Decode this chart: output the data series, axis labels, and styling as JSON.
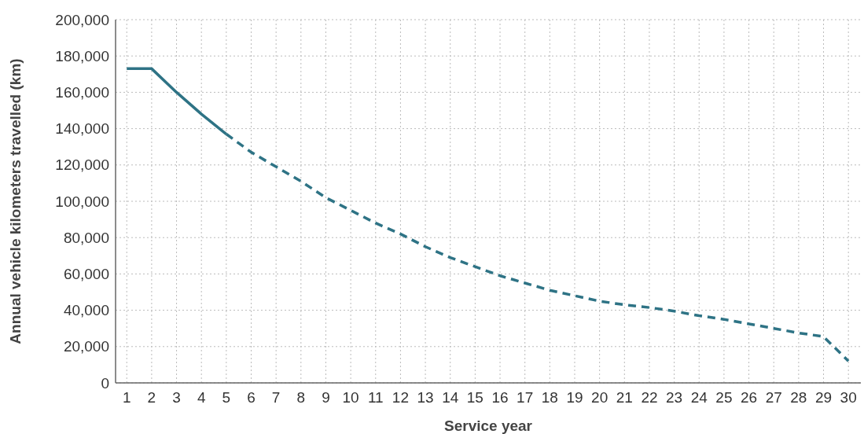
{
  "chart_data": {
    "type": "line",
    "xlabel": "Service year",
    "ylabel": "Annual vehicle kilometers travelled (km)",
    "series": [
      {
        "color": "#2e7385",
        "line_style": "solid",
        "x": [
          1,
          2,
          3,
          4,
          5
        ],
        "values": [
          173000,
          173000,
          160000,
          148000,
          137000
        ]
      },
      {
        "color": "#2e7385",
        "line_style": "dashed",
        "x": [
          5,
          6,
          7,
          8,
          9,
          10,
          11,
          12,
          13,
          14,
          15,
          16,
          17,
          18,
          19,
          20,
          21,
          22,
          23,
          24,
          25,
          26,
          27,
          28,
          29,
          30
        ],
        "values": [
          137000,
          127000,
          119000,
          111000,
          102000,
          95000,
          88000,
          82000,
          75000,
          69000,
          64000,
          59000,
          55000,
          51000,
          48000,
          45000,
          43000,
          41500,
          39500,
          37000,
          35000,
          32500,
          30000,
          27500,
          25500,
          12000
        ]
      }
    ],
    "xlim": [
      0.55,
      30.5
    ],
    "xticks": [
      1,
      2,
      3,
      4,
      5,
      6,
      7,
      8,
      9,
      10,
      11,
      12,
      13,
      14,
      15,
      16,
      17,
      18,
      19,
      20,
      21,
      22,
      23,
      24,
      25,
      26,
      27,
      28,
      29,
      30
    ],
    "ylim": [
      0,
      200000
    ],
    "yticks": [
      {
        "value": 0,
        "label": "0"
      },
      {
        "value": 20000,
        "label": "20,000"
      },
      {
        "value": 40000,
        "label": "40,000"
      },
      {
        "value": 60000,
        "label": "60,000"
      },
      {
        "value": 80000,
        "label": "80,000"
      },
      {
        "value": 100000,
        "label": "100,000"
      },
      {
        "value": 120000,
        "label": "120,000"
      },
      {
        "value": 140000,
        "label": "140,000"
      },
      {
        "value": 160000,
        "label": "160,000"
      },
      {
        "value": 180000,
        "label": "180,000"
      },
      {
        "value": 200000,
        "label": "200,000"
      }
    ],
    "grid": true,
    "marker": "none"
  }
}
